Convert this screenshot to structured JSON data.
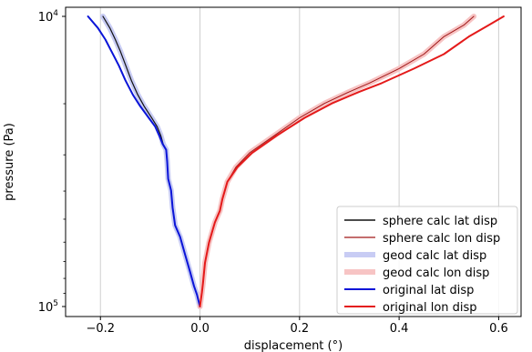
{
  "chart_data": {
    "type": "line",
    "xlabel": "displacement (°)",
    "ylabel": "pressure (Pa)",
    "xlim": [
      -0.27,
      0.645
    ],
    "ylim_exponent": [
      5,
      4
    ],
    "y_scale": "log",
    "y_inverted": true,
    "grid": "vertical",
    "legend_position": "lower-right",
    "x_ticks": [
      {
        "value": -0.2,
        "label": "−0.2"
      },
      {
        "value": 0.0,
        "label": "0.0"
      },
      {
        "value": 0.2,
        "label": "0.2"
      },
      {
        "value": 0.4,
        "label": "0.4"
      },
      {
        "value": 0.6,
        "label": "0.6"
      }
    ],
    "y_ticks": [
      {
        "exp": 4,
        "label_base": "10",
        "label_exp": "4"
      },
      {
        "exp": 5,
        "label_base": "10",
        "label_exp": "5"
      }
    ],
    "series": [
      {
        "name": "geod calc lat disp",
        "color": "#c8ccf4",
        "width": 6,
        "points": [
          [
            0.0,
            5.0
          ],
          [
            -0.006,
            4.96
          ],
          [
            -0.012,
            4.93
          ],
          [
            -0.02,
            4.88
          ],
          [
            -0.03,
            4.82
          ],
          [
            -0.04,
            4.76
          ],
          [
            -0.05,
            4.72
          ],
          [
            -0.055,
            4.66
          ],
          [
            -0.058,
            4.6
          ],
          [
            -0.064,
            4.56
          ],
          [
            -0.066,
            4.5
          ],
          [
            -0.068,
            4.46
          ],
          [
            -0.074,
            4.44
          ],
          [
            -0.079,
            4.41
          ],
          [
            -0.086,
            4.38
          ],
          [
            -0.097,
            4.35
          ],
          [
            -0.112,
            4.31
          ],
          [
            -0.125,
            4.27
          ],
          [
            -0.138,
            4.22
          ],
          [
            -0.149,
            4.17
          ],
          [
            -0.16,
            4.12
          ],
          [
            -0.17,
            4.08
          ],
          [
            -0.181,
            4.04
          ],
          [
            -0.195,
            4.0
          ]
        ]
      },
      {
        "name": "geod calc lon disp",
        "color": "#f7c4c4",
        "width": 6,
        "points": [
          [
            0.0,
            5.0
          ],
          [
            0.004,
            4.95
          ],
          [
            0.006,
            4.92
          ],
          [
            0.01,
            4.85
          ],
          [
            0.018,
            4.78
          ],
          [
            0.03,
            4.71
          ],
          [
            0.04,
            4.67
          ],
          [
            0.045,
            4.63
          ],
          [
            0.055,
            4.57
          ],
          [
            0.072,
            4.52
          ],
          [
            0.1,
            4.47
          ],
          [
            0.15,
            4.41
          ],
          [
            0.2,
            4.35
          ],
          [
            0.25,
            4.3
          ],
          [
            0.3,
            4.26
          ],
          [
            0.34,
            4.23
          ],
          [
            0.4,
            4.18
          ],
          [
            0.45,
            4.13
          ],
          [
            0.49,
            4.07
          ],
          [
            0.53,
            4.03
          ],
          [
            0.55,
            4.0
          ]
        ]
      },
      {
        "name": "sphere calc lat disp",
        "color": "#111111",
        "width": 1.2,
        "points": [
          [
            0.0,
            5.0
          ],
          [
            -0.006,
            4.96
          ],
          [
            -0.012,
            4.93
          ],
          [
            -0.02,
            4.88
          ],
          [
            -0.03,
            4.82
          ],
          [
            -0.04,
            4.76
          ],
          [
            -0.05,
            4.72
          ],
          [
            -0.055,
            4.66
          ],
          [
            -0.058,
            4.6
          ],
          [
            -0.064,
            4.56
          ],
          [
            -0.066,
            4.5
          ],
          [
            -0.068,
            4.46
          ],
          [
            -0.074,
            4.44
          ],
          [
            -0.079,
            4.41
          ],
          [
            -0.086,
            4.38
          ],
          [
            -0.097,
            4.35
          ],
          [
            -0.112,
            4.31
          ],
          [
            -0.125,
            4.27
          ],
          [
            -0.138,
            4.22
          ],
          [
            -0.149,
            4.17
          ],
          [
            -0.16,
            4.12
          ],
          [
            -0.17,
            4.08
          ],
          [
            -0.181,
            4.04
          ],
          [
            -0.195,
            4.0
          ]
        ]
      },
      {
        "name": "sphere calc lon disp",
        "color": "#a01818",
        "width": 1.0,
        "points": [
          [
            0.0,
            5.0
          ],
          [
            0.004,
            4.95
          ],
          [
            0.006,
            4.92
          ],
          [
            0.01,
            4.85
          ],
          [
            0.018,
            4.78
          ],
          [
            0.03,
            4.71
          ],
          [
            0.04,
            4.67
          ],
          [
            0.045,
            4.63
          ],
          [
            0.055,
            4.57
          ],
          [
            0.072,
            4.52
          ],
          [
            0.1,
            4.47
          ],
          [
            0.15,
            4.41
          ],
          [
            0.2,
            4.35
          ],
          [
            0.25,
            4.3
          ],
          [
            0.3,
            4.26
          ],
          [
            0.34,
            4.23
          ],
          [
            0.4,
            4.18
          ],
          [
            0.45,
            4.13
          ],
          [
            0.49,
            4.07
          ],
          [
            0.53,
            4.03
          ],
          [
            0.55,
            4.0
          ]
        ]
      },
      {
        "name": "original lat disp",
        "color": "#0a14d8",
        "width": 2,
        "points": [
          [
            0.0,
            5.0
          ],
          [
            -0.006,
            4.96
          ],
          [
            -0.012,
            4.93
          ],
          [
            -0.02,
            4.88
          ],
          [
            -0.03,
            4.82
          ],
          [
            -0.04,
            4.76
          ],
          [
            -0.05,
            4.72
          ],
          [
            -0.055,
            4.66
          ],
          [
            -0.058,
            4.6
          ],
          [
            -0.064,
            4.56
          ],
          [
            -0.066,
            4.5
          ],
          [
            -0.068,
            4.46
          ],
          [
            -0.075,
            4.44
          ],
          [
            -0.082,
            4.41
          ],
          [
            -0.09,
            4.38
          ],
          [
            -0.103,
            4.35
          ],
          [
            -0.12,
            4.31
          ],
          [
            -0.135,
            4.27
          ],
          [
            -0.15,
            4.22
          ],
          [
            -0.163,
            4.17
          ],
          [
            -0.178,
            4.12
          ],
          [
            -0.19,
            4.08
          ],
          [
            -0.205,
            4.04
          ],
          [
            -0.225,
            4.0
          ]
        ]
      },
      {
        "name": "original lon disp",
        "color": "#e41a1a",
        "width": 2,
        "points": [
          [
            0.0,
            5.0
          ],
          [
            0.004,
            4.95
          ],
          [
            0.006,
            4.92
          ],
          [
            0.01,
            4.85
          ],
          [
            0.018,
            4.78
          ],
          [
            0.03,
            4.71
          ],
          [
            0.04,
            4.67
          ],
          [
            0.045,
            4.63
          ],
          [
            0.055,
            4.57
          ],
          [
            0.075,
            4.52
          ],
          [
            0.105,
            4.47
          ],
          [
            0.155,
            4.41
          ],
          [
            0.21,
            4.35
          ],
          [
            0.265,
            4.3
          ],
          [
            0.32,
            4.26
          ],
          [
            0.365,
            4.23
          ],
          [
            0.43,
            4.18
          ],
          [
            0.49,
            4.13
          ],
          [
            0.54,
            4.07
          ],
          [
            0.58,
            4.03
          ],
          [
            0.61,
            4.0
          ]
        ]
      }
    ],
    "legend": [
      {
        "label": "sphere calc lat disp",
        "color": "#111111",
        "width": 1.5
      },
      {
        "label": "sphere calc lon disp",
        "color": "#a01818",
        "width": 1.2
      },
      {
        "label": "geod calc lat disp",
        "color": "#c8ccf4",
        "width": 6
      },
      {
        "label": "geod calc lon disp",
        "color": "#f7c4c4",
        "width": 6
      },
      {
        "label": "original lat disp",
        "color": "#0a14d8",
        "width": 2
      },
      {
        "label": "original lon disp",
        "color": "#e41a1a",
        "width": 2
      }
    ]
  }
}
